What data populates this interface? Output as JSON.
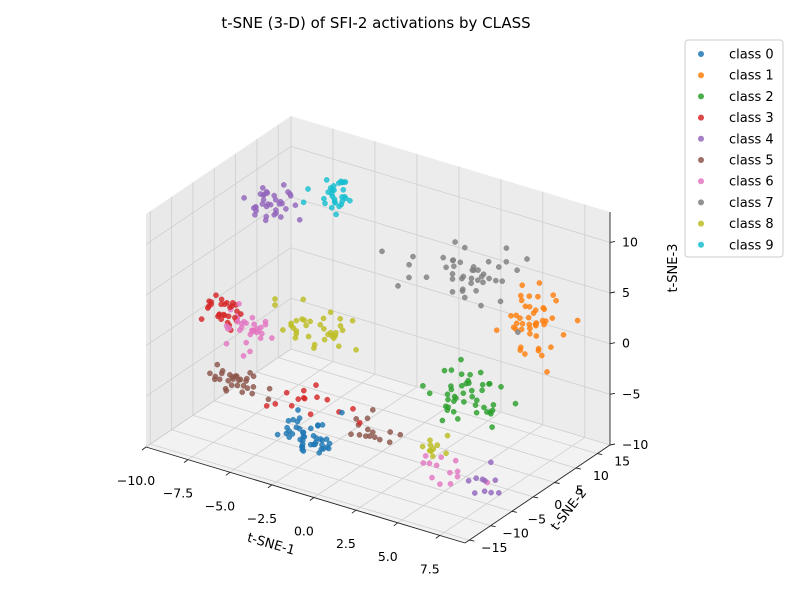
{
  "chart_data": {
    "type": "scatter",
    "projection": "3d",
    "title": "t-SNE (3-D) of SFI-2 activations by CLASS",
    "xlabel": "t-SNE-1",
    "ylabel": "t-SNE-2",
    "zlabel": "t-SNE-3",
    "xlim": [
      -10,
      9
    ],
    "ylim": [
      -16,
      18
    ],
    "zlim": [
      -10,
      13
    ],
    "xticks": [
      -10,
      -7.5,
      -5,
      -2.5,
      0,
      2.5,
      5,
      7.5
    ],
    "xtick_labels": [
      "−10.0",
      "−7.5",
      "−5.0",
      "−2.5",
      "0.0",
      "2.5",
      "5.0",
      "7.5"
    ],
    "yticks": [
      -15,
      -10,
      -5,
      0,
      5,
      10,
      15
    ],
    "ytick_labels": [
      "−15",
      "−10",
      "−5",
      "0",
      "5",
      "10",
      "15"
    ],
    "zticks": [
      -10,
      -5,
      0,
      5,
      10
    ],
    "ztick_labels": [
      "−10",
      "−5",
      "0",
      "5",
      "10"
    ],
    "grid": true,
    "legend_position": "top-right outside",
    "series": [
      {
        "name": "class 0",
        "color": "#1f77b4",
        "clusters": [
          {
            "center": [
              -1,
              -14,
              -5
            ],
            "spread": [
              1.6,
              1.8,
              1.6
            ],
            "count": 45
          }
        ]
      },
      {
        "name": "class 1",
        "color": "#ff7f0e",
        "clusters": [
          {
            "center": [
              7,
              8,
              4
            ],
            "spread": [
              1.2,
              2.5,
              2.8
            ],
            "count": 45
          }
        ]
      },
      {
        "name": "class 2",
        "color": "#2ca02c",
        "clusters": [
          {
            "center": [
              5,
              0,
              -2
            ],
            "spread": [
              1.8,
              3.0,
              2.2
            ],
            "count": 45
          }
        ]
      },
      {
        "name": "class 3",
        "color": "#d62728",
        "clusters": [
          {
            "center": [
              -8.5,
              -4,
              1
            ],
            "spread": [
              0.9,
              2.0,
              1.6
            ],
            "count": 30
          },
          {
            "center": [
              -2.5,
              -8.5,
              -4
            ],
            "spread": [
              2.5,
              2.5,
              0.8
            ],
            "count": 15
          }
        ]
      },
      {
        "name": "class 4",
        "color": "#9467bd",
        "clusters": [
          {
            "center": [
              -8,
              5,
              9
            ],
            "spread": [
              1.2,
              2.5,
              1.4
            ],
            "count": 35
          },
          {
            "center": [
              7,
              -3,
              -9
            ],
            "spread": [
              1.2,
              2.5,
              1.0
            ],
            "count": 10
          }
        ]
      },
      {
        "name": "class 5",
        "color": "#8c564b",
        "clusters": [
          {
            "center": [
              -6,
              -11,
              -3
            ],
            "spread": [
              1.6,
              1.8,
              0.9
            ],
            "count": 30
          },
          {
            "center": [
              0.5,
              -5,
              -6
            ],
            "spread": [
              2.5,
              2.5,
              0.6
            ],
            "count": 15
          }
        ]
      },
      {
        "name": "class 6",
        "color": "#e377c2",
        "clusters": [
          {
            "center": [
              -7,
              -4,
              0
            ],
            "spread": [
              0.9,
              2.0,
              1.6
            ],
            "count": 32
          },
          {
            "center": [
              4.5,
              -3,
              -9
            ],
            "spread": [
              1.8,
              2.0,
              0.9
            ],
            "count": 13
          }
        ]
      },
      {
        "name": "class 7",
        "color": "#7f7f7f",
        "clusters": [
          {
            "center": [
              3,
              8,
              7
            ],
            "spread": [
              3.0,
              4.0,
              2.2
            ],
            "count": 45
          }
        ]
      },
      {
        "name": "class 8",
        "color": "#bcbd22",
        "clusters": [
          {
            "center": [
              -4,
              0,
              0
            ],
            "spread": [
              2.2,
              2.8,
              1.6
            ],
            "count": 35
          },
          {
            "center": [
              4,
              -3,
              -7
            ],
            "spread": [
              0.9,
              1.2,
              0.9
            ],
            "count": 10
          }
        ]
      },
      {
        "name": "class 9",
        "color": "#17becf",
        "clusters": [
          {
            "center": [
              -5,
              9,
              10
            ],
            "spread": [
              1.0,
              2.0,
              1.6
            ],
            "count": 30
          }
        ]
      }
    ]
  }
}
